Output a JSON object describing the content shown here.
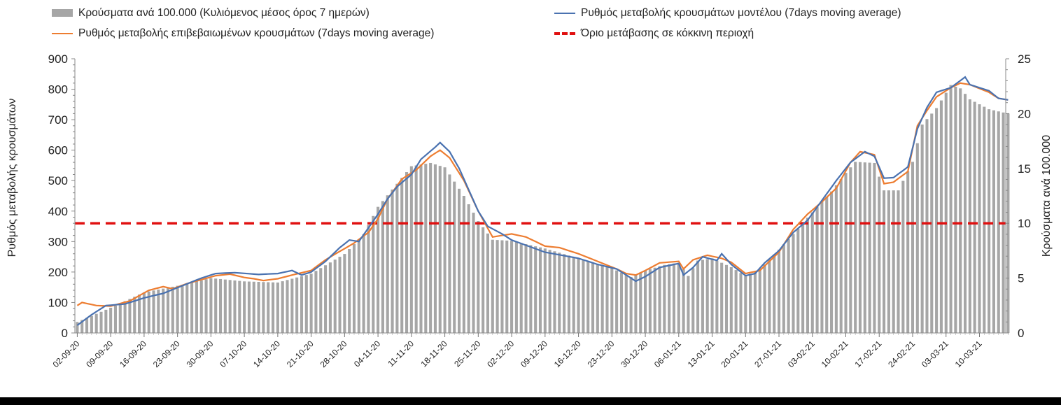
{
  "chart_data": {
    "type": "bar+line",
    "legend": {
      "bars": "Κρούσματα ανά 100.000 (Κυλιόμενος μέσος όρος 7 ημερών)",
      "model": "Ρυθμός μεταβολής κρουσμάτων μοντέλου (7days moving average)",
      "confirmed": "Ρυθμός μεταβολής επιβεβαιωμένων κρουσμάτων (7days moving average)",
      "threshold": "Όριο μετάβασης σε κόκκινη περιοχή"
    },
    "ylabel_left": "Ρυθμός μεταβολής κρουσμάτων",
    "ylabel_right": "Κρούσματα ανά 100.000",
    "ylim_left": [
      0,
      900
    ],
    "ylim_right": [
      0,
      25
    ],
    "yticks_left": [
      "0",
      "100",
      "200",
      "300",
      "400",
      "500",
      "600",
      "700",
      "800",
      "900"
    ],
    "yticks_right": [
      "0",
      "5",
      "10",
      "15",
      "20",
      "25"
    ],
    "x_start": "02-09-20",
    "x_end": "16-03-21",
    "x_tick_labels": [
      "02-09-20",
      "09-09-20",
      "16-09-20",
      "23-09-20",
      "30-09-20",
      "07-10-20",
      "14-10-20",
      "21-10-20",
      "28-10-20",
      "04-11-20",
      "11-11-20",
      "18-11-20",
      "25-11-20",
      "02-12-20",
      "09-12-20",
      "16-12-20",
      "23-12-20",
      "30-12-20",
      "06-01-21",
      "13-01-21",
      "20-01-21",
      "27-01-21",
      "03-02-21",
      "10-02-21",
      "17-02-21",
      "24-02-21",
      "03-03-21",
      "10-03-21"
    ],
    "threshold_value": 360,
    "colors": {
      "bars": "#a6a6a6",
      "model": "#4a72b0",
      "confirmed": "#ed7d31",
      "threshold": "#e01010"
    },
    "series_bars_keypoints": [
      [
        "02-09-20",
        1.0
      ],
      [
        "09-09-20",
        2.3
      ],
      [
        "16-09-20",
        3.7
      ],
      [
        "23-09-20",
        4.3
      ],
      [
        "30-09-20",
        5.0
      ],
      [
        "07-10-20",
        4.7
      ],
      [
        "14-10-20",
        4.6
      ],
      [
        "21-10-20",
        5.4
      ],
      [
        "28-10-20",
        7.2
      ],
      [
        "01-11-20",
        9.0
      ],
      [
        "04-11-20",
        11.5
      ],
      [
        "08-11-20",
        13.6
      ],
      [
        "11-11-20",
        15.2
      ],
      [
        "15-11-20",
        15.5
      ],
      [
        "18-11-20",
        15.1
      ],
      [
        "22-11-20",
        12.5
      ],
      [
        "25-11-20",
        10.2
      ],
      [
        "28-11-20",
        8.5
      ],
      [
        "02-12-20",
        8.4
      ],
      [
        "09-12-20",
        7.7
      ],
      [
        "16-12-20",
        6.8
      ],
      [
        "23-12-20",
        5.9
      ],
      [
        "27-12-20",
        5.1
      ],
      [
        "30-12-20",
        5.7
      ],
      [
        "03-01-21",
        6.2
      ],
      [
        "06-01-21",
        6.4
      ],
      [
        "08-01-21",
        5.2
      ],
      [
        "10-01-21",
        6.6
      ],
      [
        "13-01-21",
        6.8
      ],
      [
        "17-01-21",
        6.0
      ],
      [
        "20-01-21",
        5.2
      ],
      [
        "23-01-21",
        5.8
      ],
      [
        "27-01-21",
        7.6
      ],
      [
        "31-01-21",
        9.5
      ],
      [
        "03-02-21",
        11.0
      ],
      [
        "07-02-21",
        12.9
      ],
      [
        "10-02-21",
        14.6
      ],
      [
        "12-02-21",
        15.6
      ],
      [
        "16-02-21",
        15.5
      ],
      [
        "18-02-21",
        13.0
      ],
      [
        "21-02-21",
        13.0
      ],
      [
        "24-02-21",
        15.6
      ],
      [
        "26-02-21",
        19.0
      ],
      [
        "01-03-21",
        20.5
      ],
      [
        "04-03-21",
        22.6
      ],
      [
        "06-03-21",
        22.3
      ],
      [
        "08-03-21",
        21.3
      ],
      [
        "12-03-21",
        20.4
      ],
      [
        "16-03-21",
        20.0
      ]
    ],
    "series_model_keypoints": [
      [
        "02-09-20",
        25
      ],
      [
        "05-09-20",
        60
      ],
      [
        "08-09-20",
        90
      ],
      [
        "12-09-20",
        95
      ],
      [
        "16-09-20",
        115
      ],
      [
        "20-09-20",
        130
      ],
      [
        "24-09-20",
        155
      ],
      [
        "28-09-20",
        180
      ],
      [
        "01-10-20",
        195
      ],
      [
        "05-10-20",
        198
      ],
      [
        "10-10-20",
        192
      ],
      [
        "14-10-20",
        195
      ],
      [
        "17-10-20",
        205
      ],
      [
        "19-10-20",
        190
      ],
      [
        "21-10-20",
        200
      ],
      [
        "24-10-20",
        235
      ],
      [
        "27-10-20",
        280
      ],
      [
        "29-10-20",
        305
      ],
      [
        "31-10-20",
        300
      ],
      [
        "02-11-20",
        345
      ],
      [
        "04-11-20",
        390
      ],
      [
        "06-11-20",
        440
      ],
      [
        "08-11-20",
        480
      ],
      [
        "11-11-20",
        520
      ],
      [
        "13-11-20",
        570
      ],
      [
        "16-11-20",
        610
      ],
      [
        "17-11-20",
        625
      ],
      [
        "19-11-20",
        595
      ],
      [
        "21-11-20",
        540
      ],
      [
        "23-11-20",
        470
      ],
      [
        "25-11-20",
        400
      ],
      [
        "27-11-20",
        350
      ],
      [
        "30-11-20",
        325
      ],
      [
        "02-12-20",
        305
      ],
      [
        "09-12-20",
        265
      ],
      [
        "16-12-20",
        245
      ],
      [
        "20-12-20",
        225
      ],
      [
        "24-12-20",
        210
      ],
      [
        "26-12-20",
        190
      ],
      [
        "28-12-20",
        170
      ],
      [
        "30-12-20",
        185
      ],
      [
        "02-01-21",
        215
      ],
      [
        "05-01-21",
        225
      ],
      [
        "06-01-21",
        228
      ],
      [
        "07-01-21",
        190
      ],
      [
        "09-01-21",
        215
      ],
      [
        "11-01-21",
        250
      ],
      [
        "14-01-21",
        238
      ],
      [
        "15-01-21",
        260
      ],
      [
        "17-01-21",
        225
      ],
      [
        "20-01-21",
        188
      ],
      [
        "22-01-21",
        195
      ],
      [
        "24-01-21",
        230
      ],
      [
        "27-01-21",
        270
      ],
      [
        "30-01-21",
        330
      ],
      [
        "02-02-21",
        370
      ],
      [
        "05-02-21",
        435
      ],
      [
        "08-02-21",
        500
      ],
      [
        "11-02-21",
        560
      ],
      [
        "14-02-21",
        595
      ],
      [
        "16-02-21",
        580
      ],
      [
        "18-02-21",
        508
      ],
      [
        "20-02-21",
        510
      ],
      [
        "23-02-21",
        545
      ],
      [
        "25-02-21",
        670
      ],
      [
        "27-02-21",
        740
      ],
      [
        "01-03-21",
        790
      ],
      [
        "04-03-21",
        805
      ],
      [
        "07-03-21",
        840
      ],
      [
        "08-03-21",
        815
      ],
      [
        "12-03-21",
        795
      ],
      [
        "14-03-21",
        770
      ],
      [
        "16-03-21",
        765
      ]
    ],
    "series_confirmed_keypoints": [
      [
        "02-09-20",
        90
      ],
      [
        "03-09-20",
        100
      ],
      [
        "06-09-20",
        90
      ],
      [
        "09-09-20",
        88
      ],
      [
        "13-09-20",
        105
      ],
      [
        "17-09-20",
        140
      ],
      [
        "20-09-20",
        152
      ],
      [
        "22-09-20",
        145
      ],
      [
        "25-09-20",
        162
      ],
      [
        "28-09-20",
        175
      ],
      [
        "01-10-20",
        188
      ],
      [
        "04-10-20",
        193
      ],
      [
        "07-10-20",
        182
      ],
      [
        "09-10-20",
        178
      ],
      [
        "11-10-20",
        172
      ],
      [
        "14-10-20",
        178
      ],
      [
        "17-10-20",
        190
      ],
      [
        "21-10-20",
        205
      ],
      [
        "24-10-20",
        240
      ],
      [
        "27-10-20",
        268
      ],
      [
        "30-10-20",
        295
      ],
      [
        "02-11-20",
        330
      ],
      [
        "04-11-20",
        375
      ],
      [
        "06-11-20",
        440
      ],
      [
        "09-11-20",
        505
      ],
      [
        "12-11-20",
        535
      ],
      [
        "15-11-20",
        580
      ],
      [
        "17-11-20",
        600
      ],
      [
        "19-11-20",
        575
      ],
      [
        "22-11-20",
        500
      ],
      [
        "25-11-20",
        400
      ],
      [
        "28-11-20",
        315
      ],
      [
        "30-11-20",
        320
      ],
      [
        "02-12-20",
        325
      ],
      [
        "05-12-20",
        315
      ],
      [
        "09-12-20",
        285
      ],
      [
        "12-12-20",
        280
      ],
      [
        "16-12-20",
        260
      ],
      [
        "20-12-20",
        235
      ],
      [
        "24-12-20",
        210
      ],
      [
        "26-12-20",
        195
      ],
      [
        "28-12-20",
        190
      ],
      [
        "30-12-20",
        205
      ],
      [
        "02-01-21",
        230
      ],
      [
        "06-01-21",
        235
      ],
      [
        "07-01-21",
        210
      ],
      [
        "09-01-21",
        240
      ],
      [
        "12-01-21",
        255
      ],
      [
        "15-01-21",
        245
      ],
      [
        "17-01-21",
        232
      ],
      [
        "20-01-21",
        195
      ],
      [
        "23-01-21",
        205
      ],
      [
        "27-01-21",
        265
      ],
      [
        "30-01-21",
        340
      ],
      [
        "02-02-21",
        390
      ],
      [
        "05-02-21",
        430
      ],
      [
        "08-02-21",
        475
      ],
      [
        "11-02-21",
        560
      ],
      [
        "13-02-21",
        595
      ],
      [
        "16-02-21",
        585
      ],
      [
        "18-02-21",
        490
      ],
      [
        "20-02-21",
        495
      ],
      [
        "23-02-21",
        530
      ],
      [
        "25-02-21",
        680
      ],
      [
        "27-02-21",
        730
      ],
      [
        "01-03-21",
        775
      ],
      [
        "04-03-21",
        805
      ],
      [
        "06-03-21",
        820
      ],
      [
        "08-03-21",
        815
      ],
      [
        "12-03-21",
        790
      ],
      [
        "14-03-21",
        770
      ],
      [
        "16-03-21",
        765
      ]
    ]
  }
}
